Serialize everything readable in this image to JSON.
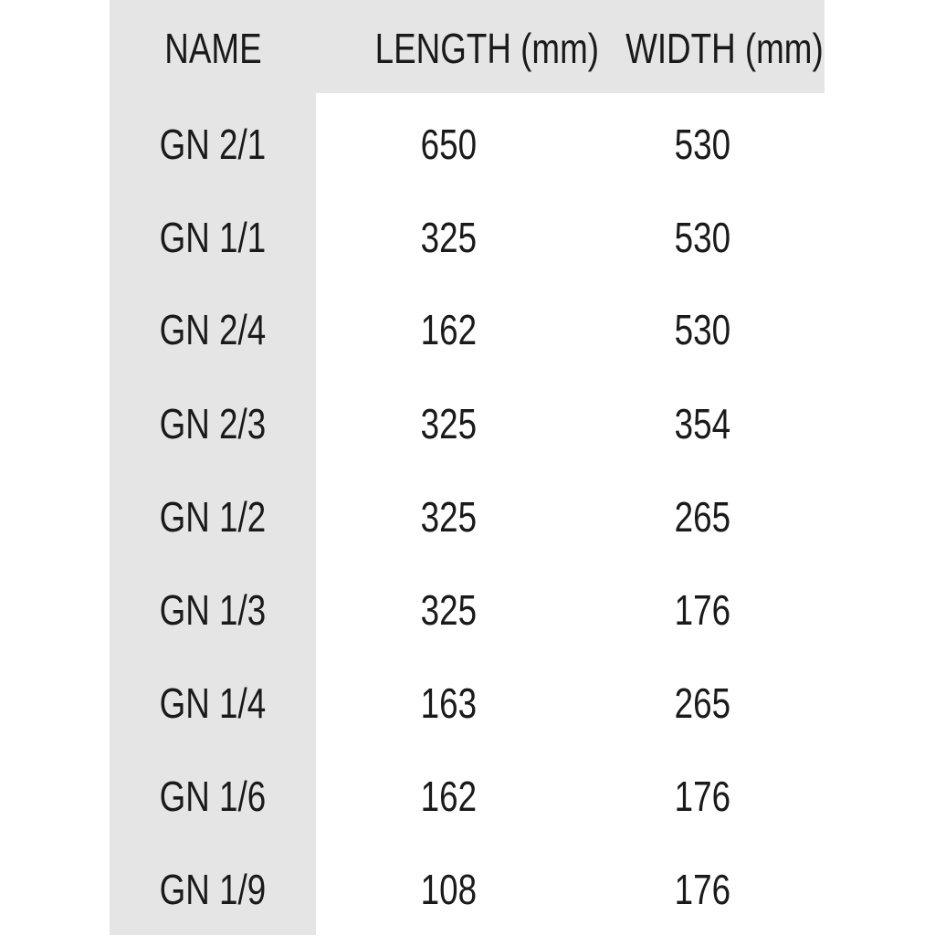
{
  "table": {
    "headers": [
      "NAME",
      "LENGTH (mm)",
      "WIDTH (mm)"
    ],
    "rows": [
      {
        "name": "GN 2/1",
        "length": "650",
        "width": "530"
      },
      {
        "name": "GN 1/1",
        "length": "325",
        "width": "530"
      },
      {
        "name": "GN 2/4",
        "length": "162",
        "width": "530"
      },
      {
        "name": "GN 2/3",
        "length": "325",
        "width": "354"
      },
      {
        "name": "GN 1/2",
        "length": "325",
        "width": "265"
      },
      {
        "name": "GN 1/3",
        "length": "325",
        "width": "176"
      },
      {
        "name": "GN 1/4",
        "length": "163",
        "width": "265"
      },
      {
        "name": "GN 1/6",
        "length": "162",
        "width": "176"
      },
      {
        "name": "GN 1/9",
        "length": "108",
        "width": "176"
      }
    ]
  },
  "colors": {
    "shade": "#e6e5e5",
    "text": "#1a1a1a"
  }
}
